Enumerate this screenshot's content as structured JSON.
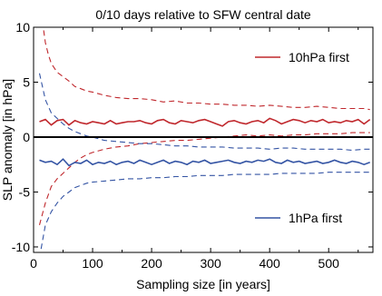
{
  "chart_data": {
    "type": "line",
    "title": "0/10 days relative to SFW central date",
    "xlabel": "Sampling size [in years]",
    "ylabel": "SLP anomaly [in hPa]",
    "xlim": [
      0,
      575
    ],
    "ylim": [
      -10.5,
      10
    ],
    "x_ticks": [
      0,
      100,
      200,
      300,
      400,
      500
    ],
    "y_ticks": [
      -10,
      -5,
      0,
      5,
      10
    ],
    "x_tick_labels": [
      "0",
      "100",
      "200",
      "300",
      "400",
      "500"
    ],
    "y_tick_labels": [
      "-10",
      "-5",
      "0",
      "5",
      "10"
    ],
    "grid": false,
    "legend_placement": "right",
    "colors": {
      "10hPa": "#c0282d",
      "1hPa": "#3454a4",
      "zero": "#000000"
    },
    "series": [
      {
        "name": "10hPa first",
        "style": "solid",
        "color": "#c0282d",
        "x": [
          10,
          20,
          30,
          40,
          50,
          60,
          70,
          80,
          90,
          100,
          110,
          120,
          130,
          140,
          150,
          160,
          170,
          180,
          190,
          200,
          210,
          220,
          230,
          240,
          250,
          260,
          270,
          280,
          290,
          300,
          310,
          320,
          330,
          340,
          350,
          360,
          370,
          380,
          390,
          400,
          410,
          420,
          430,
          440,
          450,
          460,
          470,
          480,
          490,
          500,
          510,
          520,
          530,
          540,
          550,
          560,
          570
        ],
        "y": [
          1.4,
          1.6,
          1.1,
          1.5,
          1.6,
          1.1,
          1.5,
          1.3,
          1.2,
          1.4,
          1.3,
          1.2,
          1.5,
          1.2,
          1.3,
          1.4,
          1.4,
          1.5,
          1.3,
          1.2,
          1.5,
          1.6,
          1.3,
          1.2,
          1.5,
          1.4,
          1.3,
          1.5,
          1.6,
          1.4,
          1.2,
          1.0,
          1.4,
          1.5,
          1.3,
          1.2,
          1.4,
          1.5,
          1.3,
          1.7,
          1.5,
          1.2,
          1.4,
          1.6,
          1.5,
          1.3,
          1.5,
          1.4,
          1.6,
          1.3,
          1.4,
          1.3,
          1.5,
          1.4,
          1.6,
          1.2,
          1.6
        ]
      },
      {
        "name": "10hPa upper",
        "style": "dashed",
        "color": "#c0282d",
        "x": [
          10,
          15,
          20,
          25,
          30,
          40,
          50,
          60,
          70,
          80,
          90,
          100,
          120,
          140,
          160,
          180,
          200,
          220,
          240,
          260,
          280,
          300,
          320,
          340,
          360,
          380,
          400,
          420,
          440,
          460,
          480,
          500,
          520,
          540,
          560,
          570
        ],
        "y": [
          13.0,
          10.5,
          8.6,
          7.5,
          6.7,
          5.9,
          5.5,
          5.1,
          4.6,
          4.4,
          4.2,
          4.1,
          3.8,
          3.6,
          3.5,
          3.5,
          3.4,
          3.2,
          3.3,
          3.1,
          3.1,
          3.0,
          3.0,
          2.9,
          2.9,
          2.8,
          2.9,
          2.8,
          2.7,
          2.7,
          2.8,
          2.7,
          2.6,
          2.6,
          2.6,
          2.5
        ]
      },
      {
        "name": "10hPa lower",
        "style": "dashed",
        "color": "#c0282d",
        "x": [
          10,
          20,
          30,
          40,
          50,
          60,
          70,
          80,
          90,
          100,
          120,
          140,
          160,
          180,
          200,
          220,
          240,
          260,
          280,
          300,
          320,
          340,
          360,
          380,
          400,
          420,
          440,
          460,
          480,
          500,
          520,
          540,
          560,
          570
        ],
        "y": [
          -8.0,
          -6.0,
          -4.5,
          -3.8,
          -3.3,
          -2.8,
          -2.3,
          -1.9,
          -1.6,
          -1.4,
          -1.1,
          -0.9,
          -0.8,
          -0.6,
          -0.5,
          -0.4,
          -0.3,
          -0.3,
          -0.2,
          -0.1,
          0.0,
          0.1,
          0.2,
          0.1,
          0.2,
          0.1,
          0.2,
          0.2,
          0.3,
          0.3,
          0.3,
          0.4,
          0.4,
          0.4
        ]
      },
      {
        "name": "1hPa first",
        "style": "solid",
        "color": "#3454a4",
        "x": [
          10,
          20,
          30,
          40,
          50,
          60,
          70,
          80,
          90,
          100,
          110,
          120,
          130,
          140,
          150,
          160,
          170,
          180,
          190,
          200,
          210,
          220,
          230,
          240,
          250,
          260,
          270,
          280,
          290,
          300,
          310,
          320,
          330,
          340,
          350,
          360,
          370,
          380,
          390,
          400,
          410,
          420,
          430,
          440,
          450,
          460,
          470,
          480,
          490,
          500,
          510,
          520,
          530,
          540,
          550,
          560,
          570
        ],
        "y": [
          -2.1,
          -2.3,
          -2.2,
          -2.5,
          -2.0,
          -2.6,
          -2.3,
          -2.4,
          -2.1,
          -2.5,
          -2.3,
          -2.4,
          -2.2,
          -2.5,
          -2.3,
          -2.2,
          -2.4,
          -2.1,
          -2.3,
          -2.5,
          -2.3,
          -2.1,
          -2.4,
          -2.2,
          -2.3,
          -2.5,
          -2.2,
          -2.3,
          -2.1,
          -2.4,
          -2.3,
          -2.2,
          -2.1,
          -2.3,
          -2.4,
          -2.2,
          -2.3,
          -2.1,
          -2.2,
          -2.0,
          -2.3,
          -2.4,
          -2.1,
          -2.3,
          -2.2,
          -2.4,
          -2.3,
          -2.2,
          -2.4,
          -2.3,
          -2.1,
          -2.3,
          -2.4,
          -2.2,
          -2.3,
          -2.5,
          -2.3
        ]
      },
      {
        "name": "1hPa upper",
        "style": "dashed",
        "color": "#3454a4",
        "x": [
          10,
          20,
          30,
          40,
          50,
          60,
          70,
          80,
          90,
          100,
          120,
          140,
          160,
          180,
          200,
          220,
          240,
          260,
          280,
          300,
          320,
          340,
          360,
          380,
          400,
          420,
          440,
          460,
          480,
          500,
          520,
          540,
          560,
          570
        ],
        "y": [
          5.8,
          3.4,
          2.2,
          1.7,
          1.2,
          0.8,
          0.5,
          0.3,
          0.1,
          0.0,
          -0.3,
          -0.4,
          -0.5,
          -0.6,
          -0.6,
          -0.7,
          -0.8,
          -0.8,
          -0.9,
          -0.9,
          -0.9,
          -1.0,
          -1.0,
          -1.0,
          -1.1,
          -1.0,
          -1.0,
          -1.1,
          -1.1,
          -1.1,
          -1.1,
          -1.2,
          -1.1,
          -1.1
        ]
      },
      {
        "name": "1hPa lower",
        "style": "dashed",
        "color": "#3454a4",
        "x": [
          10,
          20,
          30,
          40,
          50,
          60,
          70,
          80,
          90,
          100,
          120,
          140,
          160,
          180,
          200,
          220,
          240,
          260,
          280,
          300,
          320,
          340,
          360,
          380,
          400,
          420,
          440,
          460,
          480,
          500,
          520,
          540,
          560,
          570
        ],
        "y": [
          -11.0,
          -8.0,
          -6.8,
          -6.0,
          -5.4,
          -5.0,
          -4.6,
          -4.4,
          -4.2,
          -4.1,
          -4.0,
          -3.9,
          -3.8,
          -3.8,
          -3.7,
          -3.7,
          -3.6,
          -3.6,
          -3.5,
          -3.5,
          -3.5,
          -3.4,
          -3.4,
          -3.4,
          -3.4,
          -3.3,
          -3.3,
          -3.3,
          -3.3,
          -3.2,
          -3.2,
          -3.2,
          -3.2,
          -3.2
        ]
      }
    ],
    "legend": [
      {
        "label": "10hPa first",
        "color": "#c0282d"
      },
      {
        "label": "1hPa first",
        "color": "#3454a4"
      }
    ]
  }
}
